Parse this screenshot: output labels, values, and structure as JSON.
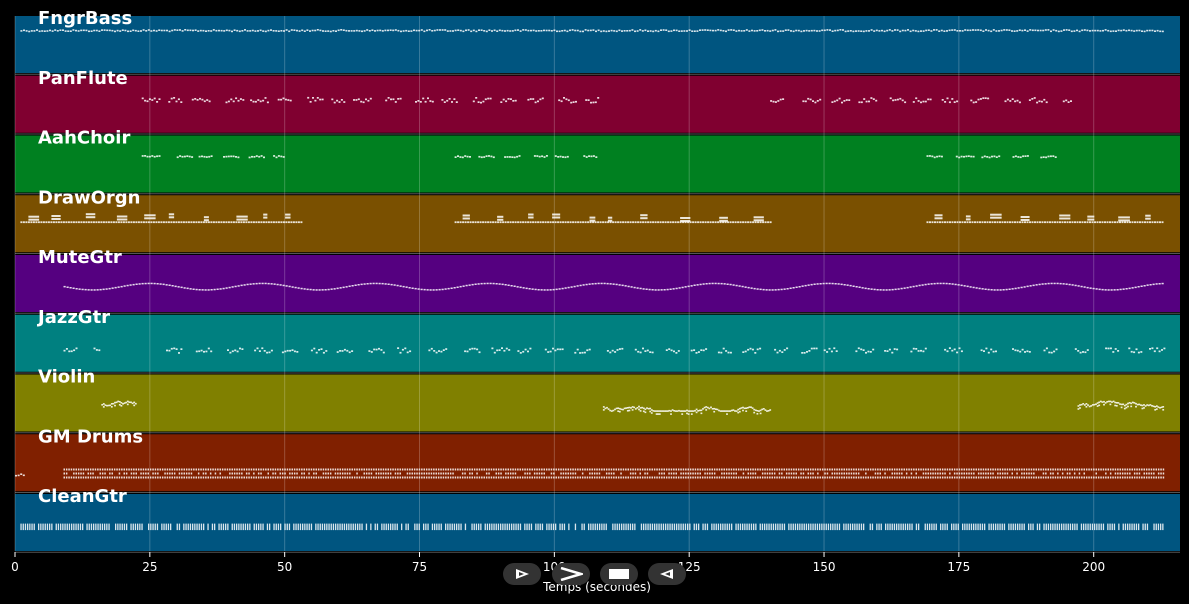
{
  "chart_data": {
    "type": "piano-roll",
    "xlabel": "Temps (secondes)",
    "xlim": [
      0,
      216
    ],
    "xticks": [
      0,
      25,
      50,
      75,
      100,
      125,
      150,
      175,
      200
    ],
    "grid": true,
    "tracks": [
      {
        "name": "FngrBass",
        "color": "#005580",
        "segments": [
          {
            "start": 1,
            "end": 213,
            "style": "dense",
            "low": 52,
            "high": 54
          }
        ]
      },
      {
        "name": "PanFlute",
        "color": "#800030",
        "segments": [
          {
            "start": 23.5,
            "end": 108,
            "style": "phrases",
            "low": 38,
            "high": 44
          },
          {
            "start": 140,
            "end": 196,
            "style": "phrases",
            "low": 38,
            "high": 44
          }
        ]
      },
      {
        "name": "AahChoir",
        "color": "#008020",
        "segments": [
          {
            "start": 23.5,
            "end": 50,
            "style": "phrases",
            "low": 44,
            "high": 46
          },
          {
            "start": 81.5,
            "end": 108,
            "style": "phrases",
            "low": 44,
            "high": 46
          },
          {
            "start": 169,
            "end": 196,
            "style": "phrases",
            "low": 44,
            "high": 46
          }
        ]
      },
      {
        "name": "DrawOrgn",
        "color": "#7a5000",
        "segments": [
          {
            "start": 1,
            "end": 53,
            "style": "chords",
            "low": 38,
            "high": 48
          },
          {
            "start": 81.5,
            "end": 140,
            "style": "chords",
            "low": 38,
            "high": 48
          },
          {
            "start": 169,
            "end": 213,
            "style": "chords",
            "low": 38,
            "high": 48
          }
        ]
      },
      {
        "name": "MuteGtr",
        "color": "#550080",
        "segments": [
          {
            "start": 9,
            "end": 213,
            "style": "wave",
            "low": 28,
            "high": 36
          }
        ]
      },
      {
        "name": "JazzGtr",
        "color": "#008080",
        "segments": [
          {
            "start": 9,
            "end": 15.5,
            "style": "phrases",
            "low": 26,
            "high": 30
          },
          {
            "start": 28,
            "end": 213,
            "style": "phrases",
            "low": 24,
            "high": 30
          }
        ]
      },
      {
        "name": "Violin",
        "color": "#808000",
        "segments": [
          {
            "start": 16,
            "end": 22.5,
            "style": "melody",
            "low": 26,
            "high": 38
          },
          {
            "start": 109,
            "end": 140,
            "style": "melody",
            "low": 26,
            "high": 38
          },
          {
            "start": 197,
            "end": 213,
            "style": "melody",
            "low": 26,
            "high": 38
          }
        ]
      },
      {
        "name": "GM Drums",
        "color": "#802000",
        "segments": [
          {
            "start": 0,
            "end": 1.5,
            "style": "dense",
            "low": 20,
            "high": 22
          },
          {
            "start": 9,
            "end": 213,
            "style": "drums",
            "low": 18,
            "high": 28
          }
        ]
      },
      {
        "name": "CleanGtr",
        "color": "#005580",
        "segments": [
          {
            "start": 1,
            "end": 213,
            "style": "strum",
            "low": 28,
            "high": 32
          }
        ]
      }
    ]
  },
  "controls": {
    "play_label": "ᐅ",
    "forward_label": "ᐳ",
    "stop_label": "■",
    "rewind_label": "ᐊ"
  }
}
